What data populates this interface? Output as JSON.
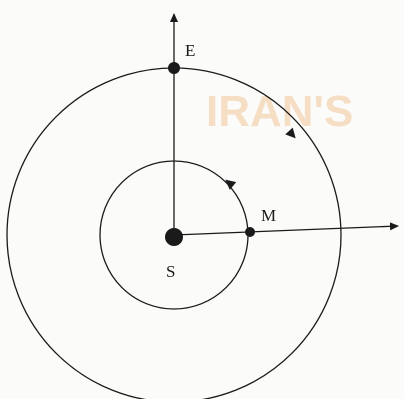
{
  "labels": {
    "earth": "E",
    "mars": "M",
    "sun": "S"
  },
  "watermark": {
    "text": "IRAN'S"
  },
  "colors": {
    "ink": "#1a1a1a",
    "watermark": "#f3c89a"
  }
}
